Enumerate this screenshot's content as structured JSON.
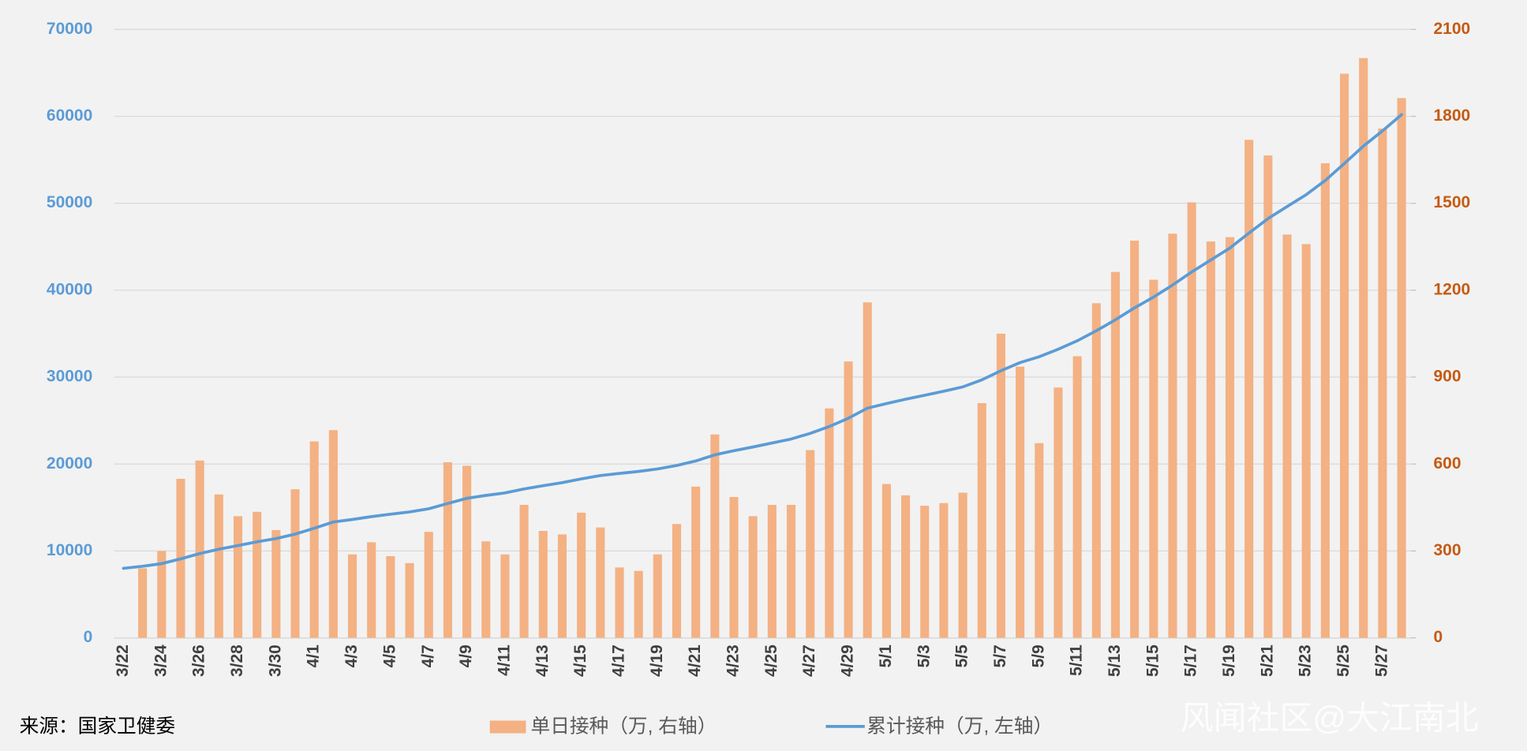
{
  "chart_data": {
    "type": "combo",
    "categories": [
      "3/22",
      null,
      "3/24",
      null,
      "3/26",
      null,
      "3/28",
      null,
      "3/30",
      null,
      "4/1",
      null,
      "4/3",
      null,
      "4/5",
      null,
      "4/7",
      null,
      "4/9",
      null,
      "4/11",
      null,
      "4/13",
      null,
      "4/15",
      null,
      "4/17",
      null,
      "4/19",
      null,
      "4/21",
      null,
      "4/23",
      null,
      "4/25",
      null,
      "4/27",
      null,
      "4/29",
      null,
      "5/1",
      null,
      "5/3",
      null,
      "5/5",
      null,
      "5/7",
      null,
      "5/9",
      null,
      "5/11",
      null,
      "5/13",
      null,
      "5/15",
      null,
      "5/17",
      null,
      "5/19",
      null,
      "5/21",
      null,
      "5/23",
      null,
      "5/25",
      null,
      "5/27",
      null
    ],
    "series": [
      {
        "name": "单日接种（万, 右轴）",
        "type": "bar",
        "axis": "y2",
        "color": "#f4b183",
        "values": [
          null,
          240,
          300,
          549,
          612,
          495,
          420,
          435,
          372,
          513,
          678,
          717,
          288,
          330,
          282,
          258,
          366,
          606,
          594,
          333,
          288,
          459,
          369,
          357,
          432,
          381,
          243,
          231,
          288,
          393,
          522,
          702,
          486,
          420,
          459,
          459,
          648,
          792,
          954,
          1158,
          531,
          492,
          456,
          465,
          501,
          810,
          1050,
          936,
          672,
          864,
          972,
          1155,
          1263,
          1371,
          1236,
          1395,
          1503,
          1368,
          1383,
          1719,
          1665,
          1392,
          1359,
          1638,
          1947,
          2001,
          1758,
          1863
        ]
      },
      {
        "name": "累计接种（万, 左轴）",
        "type": "line",
        "axis": "y",
        "color": "#5b9bd5",
        "values": [
          8000,
          8240,
          8540,
          9089,
          9701,
          10196,
          10616,
          11051,
          11423,
          11936,
          12614,
          13331,
          13619,
          13949,
          14231,
          14489,
          14855,
          15461,
          16055,
          16388,
          16676,
          17135,
          17504,
          17861,
          18293,
          18674,
          18917,
          19148,
          19436,
          19829,
          20351,
          21053,
          21539,
          21959,
          22418,
          22877,
          23525,
          24317,
          25271,
          26429,
          26960,
          27452,
          27908,
          28373,
          28874,
          29684,
          30734,
          31670,
          32342,
          33206,
          34178,
          35333,
          36596,
          37967,
          39203,
          40598,
          42101,
          43469,
          44852,
          46571,
          48236,
          49628,
          50987,
          52625,
          54572,
          56573,
          58331,
          60194
        ]
      }
    ],
    "ylim": [
      0,
      70000
    ],
    "yticks": [
      0,
      10000,
      20000,
      30000,
      40000,
      50000,
      60000,
      70000
    ],
    "y2lim": [
      0,
      2100
    ],
    "y2ticks": [
      0,
      300,
      600,
      900,
      1200,
      1500,
      1800,
      2100
    ],
    "grid": true,
    "source": "来源：国家卫健委",
    "watermark": "风闻社区@大江南北"
  }
}
